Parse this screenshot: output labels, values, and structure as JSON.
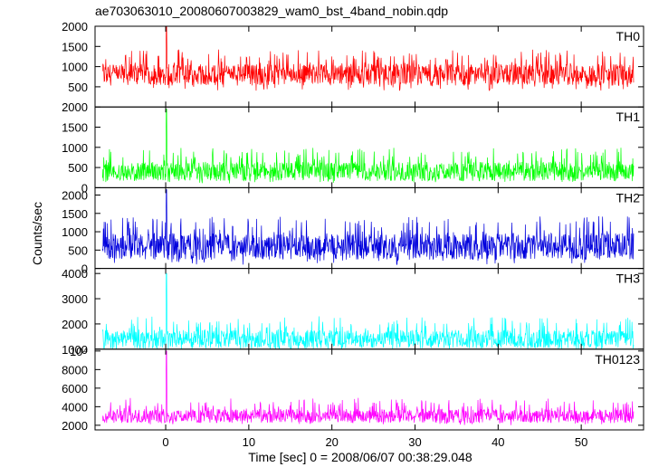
{
  "chart_data": {
    "type": "line",
    "title": "ae703063010_20080607003829_wam0_bst_4band_nobin.qdp",
    "xlabel": "Time [sec] 0 = 2008/06/07 00:38:29.048",
    "ylabel": "Counts/sec",
    "xlim": [
      -8.5,
      57.5
    ],
    "x_ticks": [
      0,
      10,
      20,
      30,
      40,
      50
    ],
    "x_tick_labels": [
      "0",
      "10",
      "20",
      "30",
      "40",
      "50"
    ],
    "data_x_range": [
      -7.6,
      56.3
    ],
    "grid": false,
    "legend": "none",
    "burst_time": 0.1,
    "panels": [
      {
        "name": "TH0",
        "color": "#ff0000",
        "ylim": [
          0,
          2000
        ],
        "y_ticks": [
          500,
          1000,
          1500,
          2000
        ],
        "y_tick_labels": [
          "500",
          "1000",
          "1500",
          "2000"
        ],
        "baseline": 800,
        "noise_low": 400,
        "noise_high": 1300,
        "peak": 2000
      },
      {
        "name": "TH1",
        "color": "#00ff00",
        "ylim": [
          0,
          2000
        ],
        "y_ticks": [
          0,
          500,
          1000,
          1500,
          2000
        ],
        "y_tick_labels": [
          "0",
          "500",
          "1000",
          "1500",
          "2000"
        ],
        "baseline": 400,
        "noise_low": 100,
        "noise_high": 900,
        "peak": 1950
      },
      {
        "name": "TH2",
        "color": "#0000dd",
        "ylim": [
          0,
          2200
        ],
        "y_ticks": [
          0,
          500,
          1000,
          1500,
          2000
        ],
        "y_tick_labels": [
          "0",
          "500",
          "1000",
          "1500",
          "2000"
        ],
        "baseline": 600,
        "noise_low": 100,
        "noise_high": 1300,
        "peak": 2150
      },
      {
        "name": "TH3",
        "color": "#00ffff",
        "ylim": [
          1000,
          4200
        ],
        "y_ticks": [
          1000,
          2000,
          3000,
          4000
        ],
        "y_tick_labels": [
          "1000",
          "2000",
          "3000",
          "4000"
        ],
        "baseline": 1400,
        "noise_low": 900,
        "noise_high": 2100,
        "peak": 4000
      },
      {
        "name": "TH0123",
        "color": "#ff00ff",
        "ylim": [
          1500,
          10200
        ],
        "y_ticks": [
          2000,
          4000,
          6000,
          8000,
          10000
        ],
        "y_tick_labels": [
          "2000",
          "4000",
          "6000",
          "8000",
          "10⁴"
        ],
        "baseline": 3000,
        "noise_low": 2000,
        "noise_high": 4500,
        "peak": 10000
      }
    ]
  }
}
